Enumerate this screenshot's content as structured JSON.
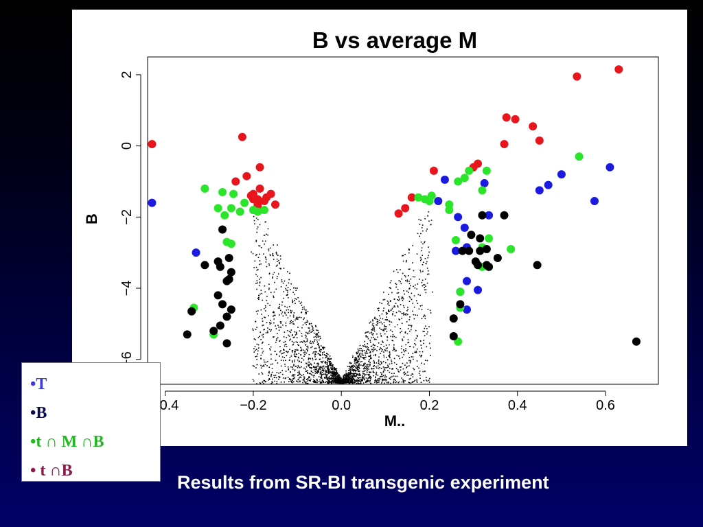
{
  "chart_data": {
    "type": "scatter",
    "title": "B vs average M",
    "xlabel": "M..",
    "ylabel": "B",
    "xlim": [
      -0.44,
      0.72
    ],
    "ylim": [
      -6.7,
      2.5
    ],
    "xticks": [
      "−0.4",
      "−0.2",
      "0.0",
      "0.2",
      "0.4",
      "0.6"
    ],
    "xtick_values": [
      -0.4,
      -0.2,
      0.0,
      0.2,
      0.4,
      0.6
    ],
    "yticks": [
      "−6",
      "−4",
      "−2",
      "0",
      "2"
    ],
    "ytick_values": [
      -6,
      -4,
      -2,
      0,
      2
    ],
    "grid": false,
    "background_points": {
      "description_style": "dense small black dots forming a V shape, min B near -6.65 at M 0.0",
      "color": "#000000"
    },
    "series": [
      {
        "color": "#e8161c",
        "points": [
          [
            -0.43,
            0.05
          ],
          [
            -0.225,
            0.25
          ],
          [
            -0.24,
            -1.0
          ],
          [
            -0.215,
            -0.85
          ],
          [
            -0.185,
            -0.6
          ],
          [
            -0.2,
            -1.35
          ],
          [
            -0.185,
            -1.2
          ],
          [
            -0.19,
            -1.5
          ],
          [
            -0.17,
            -1.45
          ],
          [
            -0.16,
            -1.35
          ],
          [
            -0.175,
            -1.55
          ],
          [
            -0.19,
            -1.65
          ],
          [
            -0.2,
            -1.5
          ],
          [
            -0.185,
            -1.8
          ],
          [
            -0.15,
            -1.65
          ],
          [
            -0.205,
            -1.4
          ],
          [
            0.13,
            -1.9
          ],
          [
            0.145,
            -1.75
          ],
          [
            0.16,
            -1.45
          ],
          [
            0.21,
            -0.7
          ],
          [
            0.3,
            -0.6
          ],
          [
            0.31,
            -0.5
          ],
          [
            0.375,
            0.8
          ],
          [
            0.395,
            0.75
          ],
          [
            0.37,
            0.05
          ],
          [
            0.435,
            0.55
          ],
          [
            0.45,
            0.15
          ],
          [
            0.535,
            1.95
          ],
          [
            0.63,
            2.15
          ]
        ]
      },
      {
        "color": "#1a1ae0",
        "points": [
          [
            -0.43,
            -1.6
          ],
          [
            -0.33,
            -3.0
          ],
          [
            0.235,
            -0.95
          ],
          [
            0.22,
            -1.55
          ],
          [
            0.265,
            -2.0
          ],
          [
            0.28,
            -2.3
          ],
          [
            0.26,
            -2.95
          ],
          [
            0.285,
            -2.85
          ],
          [
            0.285,
            -3.8
          ],
          [
            0.27,
            -4.1
          ],
          [
            0.285,
            -4.6
          ],
          [
            0.31,
            -4.05
          ],
          [
            0.325,
            -1.05
          ],
          [
            0.335,
            -1.95
          ],
          [
            0.45,
            -1.25
          ],
          [
            0.47,
            -1.1
          ],
          [
            0.5,
            -0.8
          ],
          [
            0.575,
            -1.55
          ],
          [
            0.61,
            -0.6
          ]
        ]
      },
      {
        "color": "#2be52b",
        "points": [
          [
            -0.31,
            -1.2
          ],
          [
            -0.28,
            -1.75
          ],
          [
            -0.27,
            -1.3
          ],
          [
            -0.245,
            -1.35
          ],
          [
            -0.265,
            -1.95
          ],
          [
            -0.25,
            -1.75
          ],
          [
            -0.23,
            -1.85
          ],
          [
            -0.22,
            -1.6
          ],
          [
            -0.2,
            -1.8
          ],
          [
            -0.19,
            -1.85
          ],
          [
            -0.175,
            -1.8
          ],
          [
            -0.26,
            -2.7
          ],
          [
            -0.25,
            -2.75
          ],
          [
            -0.335,
            -4.55
          ],
          [
            -0.29,
            -5.3
          ],
          [
            0.175,
            -1.45
          ],
          [
            0.19,
            -1.5
          ],
          [
            0.2,
            -1.55
          ],
          [
            0.205,
            -1.4
          ],
          [
            0.245,
            -1.65
          ],
          [
            0.245,
            -1.8
          ],
          [
            0.26,
            -2.65
          ],
          [
            0.265,
            -1.0
          ],
          [
            0.28,
            -0.9
          ],
          [
            0.29,
            -0.7
          ],
          [
            0.32,
            -1.25
          ],
          [
            0.33,
            -0.7
          ],
          [
            0.32,
            -2.85
          ],
          [
            0.32,
            -3.4
          ],
          [
            0.335,
            -2.6
          ],
          [
            0.385,
            -2.9
          ],
          [
            0.27,
            -4.1
          ],
          [
            0.27,
            -4.55
          ],
          [
            0.265,
            -5.5
          ],
          [
            0.54,
            -0.3
          ]
        ]
      },
      {
        "color": "#000000",
        "points": [
          [
            -0.27,
            -2.35
          ],
          [
            -0.255,
            -3.15
          ],
          [
            -0.28,
            -3.25
          ],
          [
            -0.275,
            -3.4
          ],
          [
            -0.31,
            -3.35
          ],
          [
            -0.25,
            -3.55
          ],
          [
            -0.255,
            -3.75
          ],
          [
            -0.26,
            -3.8
          ],
          [
            -0.28,
            -4.2
          ],
          [
            -0.27,
            -4.45
          ],
          [
            -0.25,
            -4.6
          ],
          [
            -0.26,
            -4.8
          ],
          [
            -0.275,
            -5.05
          ],
          [
            -0.34,
            -4.65
          ],
          [
            -0.29,
            -5.2
          ],
          [
            -0.35,
            -5.3
          ],
          [
            -0.26,
            -5.55
          ],
          [
            0.255,
            -4.85
          ],
          [
            0.255,
            -5.35
          ],
          [
            0.27,
            -4.45
          ],
          [
            0.275,
            -2.95
          ],
          [
            0.29,
            -2.95
          ],
          [
            0.295,
            -2.5
          ],
          [
            0.305,
            -3.25
          ],
          [
            0.315,
            -2.6
          ],
          [
            0.315,
            -2.95
          ],
          [
            0.33,
            -2.9
          ],
          [
            0.32,
            -1.95
          ],
          [
            0.31,
            -3.35
          ],
          [
            0.33,
            -3.35
          ],
          [
            0.335,
            -3.4
          ],
          [
            0.355,
            -3.15
          ],
          [
            0.37,
            -1.95
          ],
          [
            0.445,
            -3.35
          ],
          [
            0.67,
            -5.5
          ]
        ]
      }
    ]
  },
  "legend": {
    "items": [
      {
        "text": "•T",
        "color": "#3c3cdc"
      },
      {
        "text": "•B",
        "color": "#0a0a50"
      },
      {
        "text": "•t ∩ M ∩B",
        "color": "#22b822"
      },
      {
        "text": "• t ∩B",
        "color": "#8b1a4a"
      }
    ]
  },
  "caption": "Results from SR-BI transgenic experiment",
  "colors": {
    "red": "#e8161c",
    "blue": "#1a1ae0",
    "green": "#2be52b",
    "black": "#000000",
    "caption_text": "#ffffff"
  }
}
